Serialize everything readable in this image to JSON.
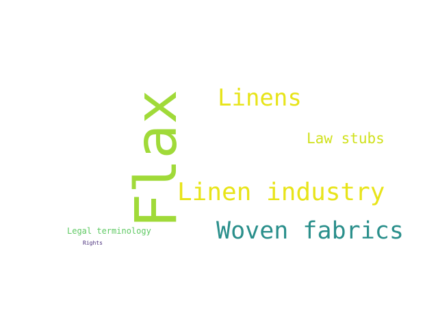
{
  "words": [
    {
      "text": "Flax",
      "color": "#a0da39"
    },
    {
      "text": "Linens",
      "color": "#e7e419"
    },
    {
      "text": "Law stubs",
      "color": "#d0e11c"
    },
    {
      "text": "Linen industry",
      "color": "#e8e419"
    },
    {
      "text": "Woven fabrics",
      "color": "#2a8f8b"
    },
    {
      "text": "Legal terminology",
      "color": "#5ec962"
    },
    {
      "text": "Rights",
      "color": "#472c7a"
    }
  ]
}
